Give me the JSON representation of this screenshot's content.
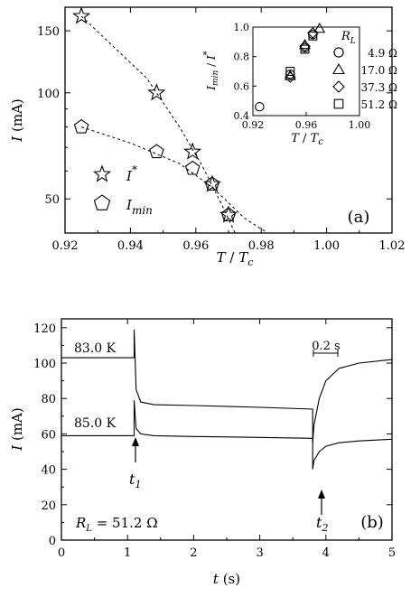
{
  "chart_data": [
    {
      "panel_label": "(a)",
      "type": "scatter",
      "x_label": {
        "main": "T",
        "sep": " / ",
        "var": "T",
        "sub": "c"
      },
      "y_label": {
        "main": "I",
        "unit": " (mA)"
      },
      "xlim": [
        0.92,
        1.02
      ],
      "ylim": [
        40,
        175
      ],
      "y_scale": "log",
      "x_ticks": [
        "0.92",
        "0.94",
        "0.96",
        "0.98",
        "1.00",
        "1.02"
      ],
      "y_ticks": [
        {
          "value": 50,
          "label": "50"
        },
        {
          "value": 100,
          "label": "100"
        },
        {
          "value": 150,
          "label": "150"
        }
      ],
      "legend": {
        "placement": "bottom-left",
        "entries": [
          {
            "marker": "star",
            "main": "I",
            "sup": "*"
          },
          {
            "marker": "pentagon",
            "main": "I",
            "sub": "min"
          }
        ]
      },
      "series": [
        {
          "marker": "star",
          "x": [
            0.925,
            0.948,
            0.959,
            0.965,
            0.97
          ],
          "y": [
            165,
            100,
            68,
            55,
            45
          ],
          "fit_x": [
            0.925,
            0.945,
            0.955,
            0.962,
            0.968,
            0.972
          ],
          "fit_y": [
            165,
            110,
            80,
            62,
            48,
            40
          ]
        },
        {
          "marker": "pentagon",
          "x": [
            0.925,
            0.948,
            0.959,
            0.965,
            0.97
          ],
          "y": [
            80,
            68,
            61,
            55,
            45
          ],
          "fit_x": [
            0.925,
            0.94,
            0.955,
            0.965,
            0.975,
            0.982
          ],
          "fit_y": [
            80,
            72,
            63,
            54,
            44,
            40
          ]
        }
      ],
      "inset": {
        "type": "scatter",
        "x_label": {
          "main": "T",
          "sep": " / ",
          "var": "T",
          "sub": "c"
        },
        "y_label": {
          "main": "I",
          "sub": "min",
          "sep": " / ",
          "var": "I",
          "sup": "*"
        },
        "xlim": [
          0.92,
          1.0
        ],
        "ylim": [
          0.4,
          1.0
        ],
        "x_ticks": [
          "0.92",
          "0.96",
          "1.00"
        ],
        "y_ticks": [
          "0.4",
          "0.6",
          "0.8",
          "1.0"
        ],
        "legend_title": {
          "main": "R",
          "sub": "L"
        },
        "legend": [
          {
            "marker": "circle",
            "label": "4.9 Ω"
          },
          {
            "marker": "triangle",
            "label": "17.0 Ω"
          },
          {
            "marker": "diamond",
            "label": "37.3 Ω"
          },
          {
            "marker": "square",
            "label": "51.2 Ω"
          }
        ],
        "points": [
          {
            "marker": "circle",
            "x": 0.925,
            "y": 0.46
          },
          {
            "marker": "circle",
            "x": 0.948,
            "y": 0.68
          },
          {
            "marker": "circle",
            "x": 0.959,
            "y": 0.86
          },
          {
            "marker": "circle",
            "x": 0.965,
            "y": 0.95
          },
          {
            "marker": "triangle",
            "x": 0.948,
            "y": 0.67
          },
          {
            "marker": "triangle",
            "x": 0.959,
            "y": 0.88
          },
          {
            "marker": "triangle",
            "x": 0.97,
            "y": 0.99
          },
          {
            "marker": "diamond",
            "x": 0.948,
            "y": 0.66
          },
          {
            "marker": "diamond",
            "x": 0.959,
            "y": 0.87
          },
          {
            "marker": "diamond",
            "x": 0.965,
            "y": 0.96
          },
          {
            "marker": "square",
            "x": 0.948,
            "y": 0.7
          },
          {
            "marker": "square",
            "x": 0.959,
            "y": 0.85
          },
          {
            "marker": "square",
            "x": 0.965,
            "y": 0.94
          }
        ]
      }
    },
    {
      "panel_label": "(b)",
      "type": "line",
      "x_label": {
        "main": "t",
        "unit": " (s)"
      },
      "y_label": {
        "main": "I",
        "unit": " (mA)"
      },
      "xlim": [
        0,
        5
      ],
      "ylim": [
        0,
        125
      ],
      "x_ticks": [
        "0",
        "1",
        "2",
        "3",
        "4",
        "5"
      ],
      "y_ticks": [
        "0",
        "20",
        "40",
        "60",
        "80",
        "100",
        "120"
      ],
      "series": [
        {
          "name": "83.0 K",
          "x": [
            0,
            1.1,
            1.1,
            1.13,
            1.2,
            1.4,
            2.0,
            3.0,
            3.8,
            3.8,
            3.82,
            3.9,
            4.0,
            4.2,
            4.5,
            5.0
          ],
          "y": [
            103,
            103,
            119,
            85,
            78,
            76.5,
            76,
            75,
            74,
            55,
            65,
            80,
            90,
            97,
            100,
            102
          ]
        },
        {
          "name": "85.0 K",
          "x": [
            0,
            1.1,
            1.1,
            1.13,
            1.2,
            1.4,
            2.0,
            3.0,
            3.8,
            3.8,
            3.82,
            3.9,
            4.0,
            4.2,
            4.5,
            5.0
          ],
          "y": [
            59,
            59,
            79,
            63,
            60,
            59,
            58.5,
            58,
            57.5,
            40,
            45,
            50,
            53,
            55,
            56,
            57
          ]
        }
      ],
      "annotations": {
        "t1": {
          "main": "t",
          "sub": "1",
          "x": 1.1
        },
        "t2": {
          "main": "t",
          "sub": "2",
          "x": 3.8
        },
        "scale_bar": "0.2 s",
        "rl": {
          "main": "R",
          "sub": "L",
          "rest": " = 51.2 Ω"
        }
      }
    }
  ]
}
